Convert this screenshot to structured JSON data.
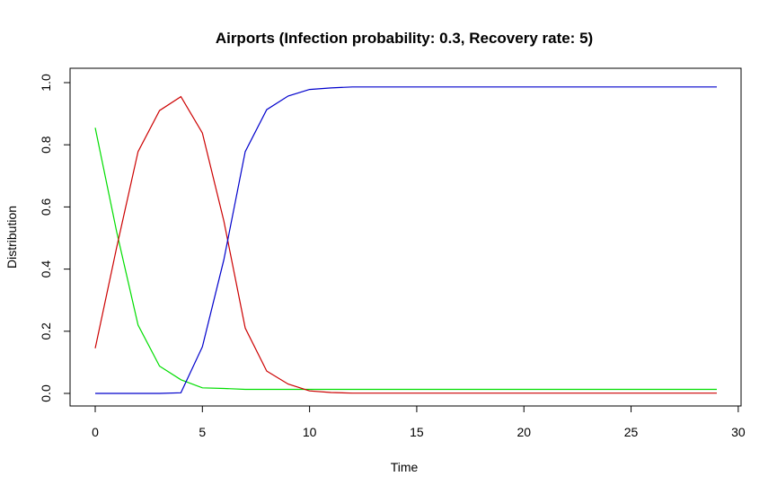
{
  "chart_data": {
    "type": "line",
    "title": "Airports (Infection probability: 0.3, Recovery rate: 5)",
    "xlabel": "Time",
    "ylabel": "Distribution",
    "xlim": [
      0,
      29
    ],
    "ylim": [
      0,
      1
    ],
    "x_ticks": [
      "0",
      "5",
      "10",
      "15",
      "20",
      "25",
      "30"
    ],
    "y_ticks": [
      "0.0",
      "0.2",
      "0.4",
      "0.6",
      "0.8",
      "1.0"
    ],
    "grid": false,
    "x": [
      0,
      1,
      2,
      3,
      4,
      5,
      6,
      7,
      8,
      9,
      10,
      11,
      12,
      13,
      14,
      15,
      16,
      17,
      18,
      19,
      20,
      21,
      22,
      23,
      24,
      25,
      26,
      27,
      28,
      29
    ],
    "series": [
      {
        "color": "#00dd00",
        "values": [
          0.855,
          0.52,
          0.22,
          0.088,
          0.044,
          0.018,
          0.016,
          0.013,
          0.013,
          0.013,
          0.013,
          0.013,
          0.013,
          0.013,
          0.013,
          0.013,
          0.013,
          0.013,
          0.013,
          0.013,
          0.013,
          0.013,
          0.013,
          0.013,
          0.013,
          0.013,
          0.013,
          0.013,
          0.013,
          0.013
        ]
      },
      {
        "color": "#cc0000",
        "values": [
          0.145,
          0.47,
          0.778,
          0.91,
          0.955,
          0.838,
          0.555,
          0.21,
          0.072,
          0.03,
          0.008,
          0.003,
          0.001,
          0.001,
          0.001,
          0.001,
          0.001,
          0.001,
          0.001,
          0.001,
          0.001,
          0.001,
          0.001,
          0.001,
          0.001,
          0.001,
          0.001,
          0.001,
          0.001,
          0.001
        ]
      },
      {
        "color": "#0000cc",
        "values": [
          0,
          0,
          0,
          0,
          0.002,
          0.15,
          0.43,
          0.778,
          0.913,
          0.957,
          0.978,
          0.983,
          0.986,
          0.986,
          0.986,
          0.986,
          0.986,
          0.986,
          0.986,
          0.986,
          0.986,
          0.986,
          0.986,
          0.986,
          0.986,
          0.986,
          0.986,
          0.986,
          0.986,
          0.986
        ]
      }
    ]
  }
}
